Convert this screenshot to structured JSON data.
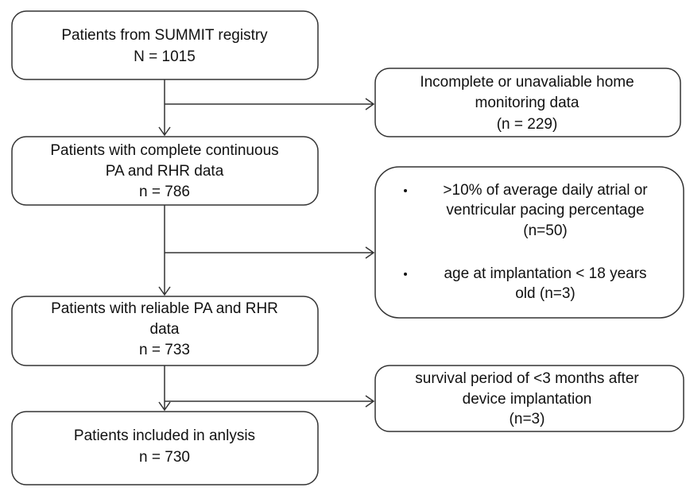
{
  "nodes": [
    {
      "lines": [
        "Patients from SUMMIT registry",
        "N = 1015"
      ]
    },
    {
      "lines": [
        "Patients with complete continuous",
        "PA and RHR data",
        "n = 786"
      ]
    },
    {
      "lines": [
        "Patients with reliable PA and RHR",
        "data",
        "n = 733"
      ]
    },
    {
      "lines": [
        "Patients included in anlysis",
        "n = 730"
      ]
    }
  ],
  "exclusions": [
    {
      "lines": [
        "Incomplete or unavaliable home",
        "monitoring data",
        "(n = 229)"
      ]
    },
    {
      "bullets": [
        {
          "lines": [
            ">10% of average daily atrial or",
            "ventricular pacing percentage",
            "(n=50)"
          ]
        },
        {
          "lines": [
            "age at implantation < 18 years",
            "old (n=3)"
          ]
        }
      ]
    },
    {
      "lines": [
        "survival period of <3 months after",
        "device implantation",
        "(n=3)"
      ]
    }
  ]
}
